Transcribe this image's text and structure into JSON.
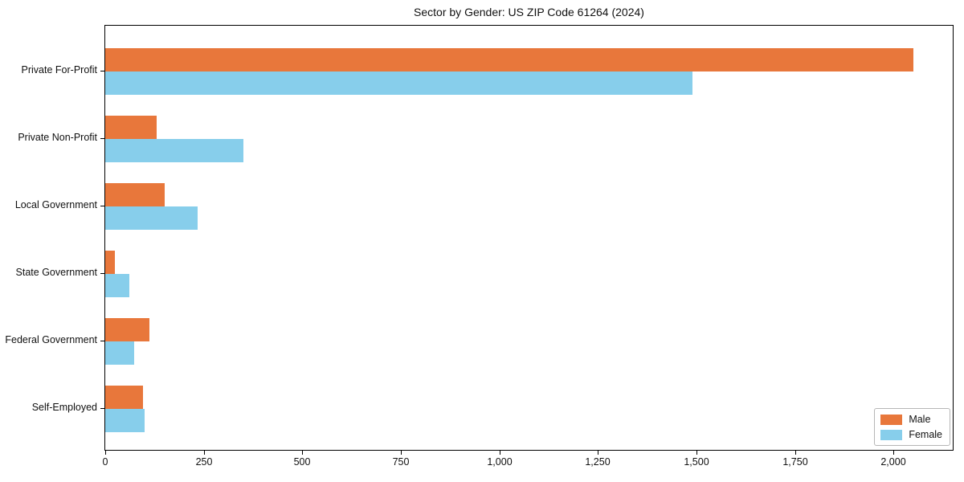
{
  "chart_data": {
    "type": "bar",
    "orientation": "horizontal",
    "title": "Sector by Gender: US ZIP Code 61264 (2024)",
    "categories": [
      "Private For-Profit",
      "Private Non-Profit",
      "Local Government",
      "State Government",
      "Federal Government",
      "Self-Employed"
    ],
    "series": [
      {
        "name": "Male",
        "color": "#e8773b",
        "values": [
          2050,
          130,
          150,
          25,
          112,
          96
        ]
      },
      {
        "name": "Female",
        "color": "#87ceeb",
        "values": [
          1490,
          350,
          235,
          62,
          73,
          100
        ]
      }
    ],
    "xlabel": "",
    "ylabel": "",
    "xlim": [
      0,
      2150
    ],
    "xticks": {
      "values": [
        0,
        250,
        500,
        750,
        1000,
        1250,
        1500,
        1750,
        2000
      ],
      "labels": [
        "0",
        "250",
        "500",
        "750",
        "1,000",
        "1,250",
        "1,500",
        "1,750",
        "2,000"
      ]
    },
    "grid": false,
    "legend_position": "lower right",
    "axis_color": "#000000",
    "background_color": "#ffffff"
  }
}
